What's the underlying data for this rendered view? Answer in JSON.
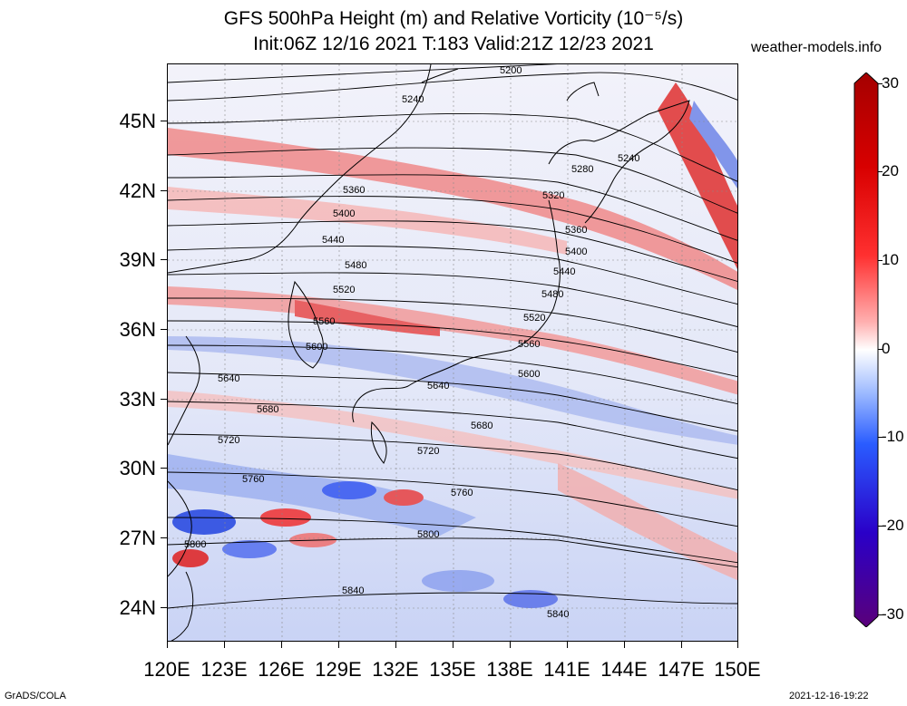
{
  "title": {
    "line1": "GFS 500hPa Height (m) and Relative Vorticity (10⁻⁵/s)",
    "line2": "Init:06Z 12/16 2021 T:183 Valid:21Z 12/23 2021"
  },
  "site": "weather-models.info",
  "footer": {
    "left": "GrADS/COLA",
    "right": "2021-12-16-19:22"
  },
  "axes": {
    "lat_labels": [
      "45N",
      "42N",
      "39N",
      "36N",
      "33N",
      "30N",
      "27N",
      "24N"
    ],
    "lon_labels": [
      "120E",
      "123E",
      "126E",
      "129E",
      "132E",
      "135E",
      "138E",
      "141E",
      "144E",
      "147E",
      "150E"
    ]
  },
  "colorbar": {
    "labels": [
      "30",
      "20",
      "10",
      "0",
      "-10",
      "-20",
      "-30"
    ],
    "colors": [
      "#5a007a",
      "#2a00c8",
      "#2a5cff",
      "#9ab8ff",
      "#ffffff",
      "#ffb0b0",
      "#ff3030",
      "#d80000",
      "#a40000"
    ]
  },
  "contours": [
    {
      "label": "5200"
    },
    {
      "label": "5240"
    },
    {
      "label": "5240"
    },
    {
      "label": "5280"
    },
    {
      "label": "5320"
    },
    {
      "label": "5360"
    },
    {
      "label": "5360"
    },
    {
      "label": "5400"
    },
    {
      "label": "5400"
    },
    {
      "label": "5440"
    },
    {
      "label": "5440"
    },
    {
      "label": "5480"
    },
    {
      "label": "5480"
    },
    {
      "label": "5520"
    },
    {
      "label": "5520"
    },
    {
      "label": "5560"
    },
    {
      "label": "5560"
    },
    {
      "label": "5600"
    },
    {
      "label": "5600"
    },
    {
      "label": "5640"
    },
    {
      "label": "5640"
    },
    {
      "label": "5680"
    },
    {
      "label": "5680"
    },
    {
      "label": "5720"
    },
    {
      "label": "5720"
    },
    {
      "label": "5760"
    },
    {
      "label": "5760"
    },
    {
      "label": "5800"
    },
    {
      "label": "5800"
    },
    {
      "label": "5840"
    },
    {
      "label": "5840"
    }
  ]
}
